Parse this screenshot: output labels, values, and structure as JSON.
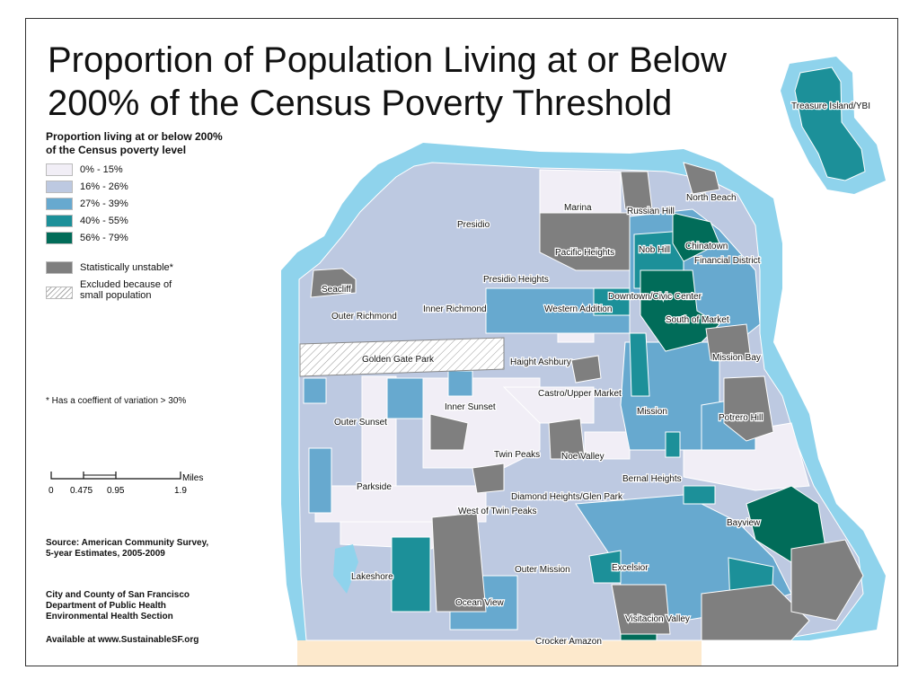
{
  "title": {
    "line1": "Proportion of Population Living at or Below",
    "line2": "200% of the Census Poverty Threshold"
  },
  "legend": {
    "heading1": "Proportion living at or below 200%",
    "heading2": "of the Census poverty level",
    "classes": [
      {
        "label": "0% - 15%",
        "color": "#f1eef6"
      },
      {
        "label": "16% - 26%",
        "color": "#bdc9e1"
      },
      {
        "label": "27% - 39%",
        "color": "#67a9cf"
      },
      {
        "label": "40% - 55%",
        "color": "#1c9099"
      },
      {
        "label": "56% - 79%",
        "color": "#016c59"
      }
    ],
    "unstable": {
      "label": "Statistically unstable*",
      "color": "#7f7f7f"
    },
    "excluded": {
      "line1": "Excluded because of",
      "line2": "small population"
    }
  },
  "note": "* Has a coeffient of variation > 30%",
  "scale": {
    "ticks": [
      "0",
      "0.475",
      "0.95",
      "1.9"
    ],
    "unit": "Miles"
  },
  "source": {
    "line1": "Source: American Community Survey,",
    "line2": "5-year Estimates, 2005-2009"
  },
  "agency": {
    "line1": "City and County of San Francisco",
    "line2": "Department of Public Health",
    "line3": "Environmental Health Section"
  },
  "availability": "Available at www.SustainableSF.org",
  "colors": {
    "water_buffer": "#8fd3ec",
    "land_south": "#fde9cc",
    "border": "#ffffff"
  },
  "neighborhoods": {
    "treasure_island": "Treasure Island/YBI",
    "north_beach": "North Beach",
    "marina": "Marina",
    "russian_hill": "Russian Hill",
    "chinatown": "Chinatown",
    "presidio": "Presidio",
    "pacific_heights": "Pacific Heights",
    "nob_hill": "Nob Hill",
    "financial_district": "Financial District",
    "presidio_heights": "Presidio Heights",
    "seacliff": "Seacliff",
    "downtown": "Downtown/Civic Center",
    "outer_richmond": "Outer Richmond",
    "inner_richmond": "Inner Richmond",
    "western_addition": "Western Addition",
    "south_of_market": "South of Market",
    "golden_gate_park": "Golden Gate Park",
    "haight_ashbury": "Haight Ashbury",
    "mission_bay": "Mission Bay",
    "castro": "Castro/Upper Market",
    "inner_sunset": "Inner Sunset",
    "outer_sunset": "Outer Sunset",
    "mission": "Mission",
    "potrero_hill": "Potrero Hill",
    "twin_peaks": "Twin Peaks",
    "noe_valley": "Noe Valley",
    "parkside": "Parkside",
    "bernal_heights": "Bernal Heights",
    "diamond_heights": "Diamond Heights/Glen Park",
    "west_of_twin_peaks": "West of Twin Peaks",
    "bayview": "Bayview",
    "lakeshore": "Lakeshore",
    "outer_mission": "Outer Mission",
    "excelsior": "Excelsior",
    "ocean_view": "Ocean View",
    "visitacion_valley": "Visitacion Valley",
    "crocker_amazon": "Crocker Amazon"
  }
}
